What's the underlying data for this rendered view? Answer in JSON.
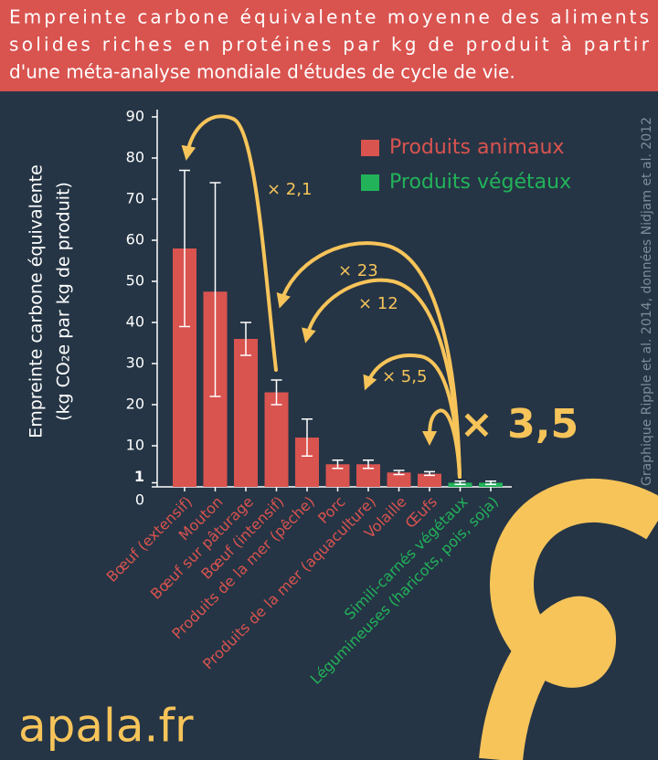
{
  "chart_data": {
    "type": "bar",
    "title": [
      "Empreinte carbone équivalente moyenne des aliments",
      "solides riches en protéines par kg de produit à partir",
      "d'une méta-analyse mondiale d'études de cycle de vie."
    ],
    "y_axis_label": [
      "Empreinte carbone équivalente",
      "(kg CO₂e par kg de produit)"
    ],
    "categories": [
      "Bœuf (extensif)",
      "Mouton",
      "Bœuf sur pâturage",
      "Bœuf (intensif)",
      "Produits de la mer (pêche)",
      "Porc",
      "Produits de la mer (aquaculture)",
      "Volaille",
      "Œufs",
      "Simili-carnés végétaux",
      "Légumineuses (haricots, pois, soja)"
    ],
    "series": [
      {
        "name": "Produits animaux",
        "color": "#d9534f",
        "values": [
          58,
          47.5,
          36,
          23,
          12,
          5.5,
          5.5,
          3.5,
          3.2,
          null,
          null
        ],
        "error_low": [
          39,
          22,
          32,
          20,
          7.5,
          4.5,
          4.5,
          3,
          2.8,
          null,
          null
        ],
        "error_high": [
          77,
          74,
          40,
          26,
          16.5,
          6.5,
          6.5,
          4,
          3.7,
          null,
          null
        ]
      },
      {
        "name": "Produits végétaux",
        "color": "#22b35a",
        "values": [
          null,
          null,
          null,
          null,
          null,
          null,
          null,
          null,
          null,
          1,
          1
        ],
        "error_low": [
          null,
          null,
          null,
          null,
          null,
          null,
          null,
          null,
          null,
          0.6,
          0.6
        ],
        "error_high": [
          null,
          null,
          null,
          null,
          null,
          null,
          null,
          null,
          null,
          1.4,
          1.4
        ]
      }
    ],
    "ylim": [
      0,
      90
    ],
    "yticks": [
      0,
      1,
      10,
      20,
      30,
      40,
      50,
      60,
      70,
      80,
      90
    ],
    "highlight_ytick_index": 1,
    "highlight_color": "#22b35a",
    "annotations": [
      "× 2,1",
      "× 23",
      "× 12",
      "× 5,5",
      "× 3,5"
    ],
    "credit": "Graphique Ripple et al. 2014, données Nidjam et al. 2012",
    "logo": "apala.fr",
    "legend": "top-right",
    "grid": false
  }
}
